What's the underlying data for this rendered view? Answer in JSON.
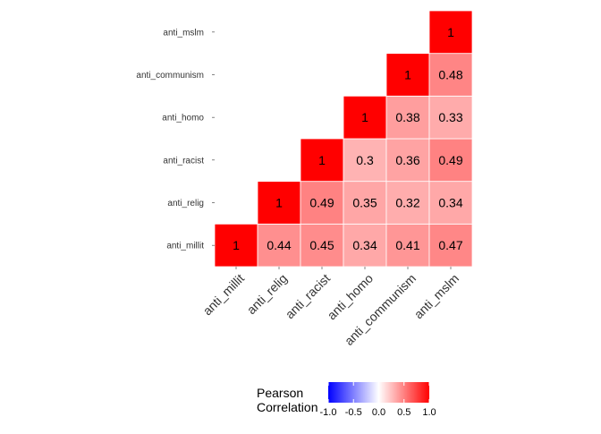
{
  "chart_data": {
    "type": "heatmap",
    "title": "",
    "xlabel": "",
    "ylabel": "",
    "x_categories": [
      "anti_millit",
      "anti_relig",
      "anti_racist",
      "anti_homo",
      "anti_communism",
      "anti_mslm"
    ],
    "y_categories": [
      "anti_millit",
      "anti_relig",
      "anti_racist",
      "anti_homo",
      "anti_communism",
      "anti_mslm"
    ],
    "cells": [
      {
        "x": "anti_millit",
        "y": "anti_millit",
        "value": 1,
        "label": "1"
      },
      {
        "x": "anti_relig",
        "y": "anti_millit",
        "value": 0.44,
        "label": "0.44"
      },
      {
        "x": "anti_racist",
        "y": "anti_millit",
        "value": 0.45,
        "label": "0.45"
      },
      {
        "x": "anti_homo",
        "y": "anti_millit",
        "value": 0.34,
        "label": "0.34"
      },
      {
        "x": "anti_communism",
        "y": "anti_millit",
        "value": 0.41,
        "label": "0.41"
      },
      {
        "x": "anti_mslm",
        "y": "anti_millit",
        "value": 0.47,
        "label": "0.47"
      },
      {
        "x": "anti_relig",
        "y": "anti_relig",
        "value": 1,
        "label": "1"
      },
      {
        "x": "anti_racist",
        "y": "anti_relig",
        "value": 0.49,
        "label": "0.49"
      },
      {
        "x": "anti_homo",
        "y": "anti_relig",
        "value": 0.35,
        "label": "0.35"
      },
      {
        "x": "anti_communism",
        "y": "anti_relig",
        "value": 0.32,
        "label": "0.32"
      },
      {
        "x": "anti_mslm",
        "y": "anti_relig",
        "value": 0.34,
        "label": "0.34"
      },
      {
        "x": "anti_racist",
        "y": "anti_racist",
        "value": 1,
        "label": "1"
      },
      {
        "x": "anti_homo",
        "y": "anti_racist",
        "value": 0.3,
        "label": "0.3"
      },
      {
        "x": "anti_communism",
        "y": "anti_racist",
        "value": 0.36,
        "label": "0.36"
      },
      {
        "x": "anti_mslm",
        "y": "anti_racist",
        "value": 0.49,
        "label": "0.49"
      },
      {
        "x": "anti_homo",
        "y": "anti_homo",
        "value": 1,
        "label": "1"
      },
      {
        "x": "anti_communism",
        "y": "anti_homo",
        "value": 0.38,
        "label": "0.38"
      },
      {
        "x": "anti_mslm",
        "y": "anti_homo",
        "value": 0.33,
        "label": "0.33"
      },
      {
        "x": "anti_communism",
        "y": "anti_communism",
        "value": 1,
        "label": "1"
      },
      {
        "x": "anti_mslm",
        "y": "anti_communism",
        "value": 0.48,
        "label": "0.48"
      },
      {
        "x": "anti_mslm",
        "y": "anti_mslm",
        "value": 1,
        "label": "1"
      }
    ],
    "color_scale": {
      "low": "#0000ff",
      "mid": "#ffffff",
      "high": "#ff0000",
      "limits": [
        -1.0,
        1.0
      ]
    },
    "legend": {
      "title_lines": [
        "Pearson",
        "Correlation"
      ],
      "ticks": [
        -1.0,
        -0.5,
        0.0,
        0.5,
        1.0
      ],
      "tick_labels": [
        "-1.0",
        "-0.5",
        "0.0",
        "0.5",
        "1.0"
      ],
      "position": "bottom"
    },
    "grid": false
  }
}
